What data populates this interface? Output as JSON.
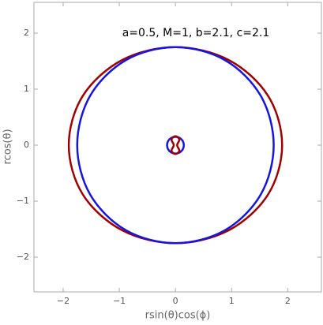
{
  "chart_data": {
    "type": "line",
    "annotation": "a=0.5, M=1, b=2.1, c=2.1",
    "xlabel": "rsin(θ)cos(ϕ)",
    "ylabel": "rcos(θ)",
    "xlim": [
      -2.52,
      2.6
    ],
    "ylim": [
      -2.62,
      2.55
    ],
    "xticks": [
      {
        "value": -2,
        "label": "−2"
      },
      {
        "value": -1,
        "label": "−1"
      },
      0,
      1,
      2
    ],
    "yticks": [
      {
        "value": -2,
        "label": "−2"
      },
      {
        "value": -1,
        "label": "−1"
      },
      0,
      1,
      2
    ],
    "series": [
      {
        "color": "#a00000",
        "x": [
          1.9,
          1.65,
          0.95,
          0,
          -0.95,
          -1.65,
          -1.9,
          -1.65,
          -0.95,
          0,
          0.95,
          1.65,
          1.9
        ],
        "values": [
          0,
          0.88,
          1.52,
          1.75,
          1.52,
          0.88,
          0,
          -0.88,
          -1.52,
          -1.75,
          -1.52,
          -0.88,
          0
        ]
      },
      {
        "color": "#1414e6",
        "x": [
          1.75,
          1.52,
          0.88,
          0,
          -0.88,
          -1.52,
          -1.75,
          -1.52,
          -0.88,
          0,
          0.88,
          1.52,
          1.75
        ],
        "values": [
          0,
          0.88,
          1.52,
          1.75,
          1.52,
          0.88,
          0,
          -0.88,
          -1.52,
          -1.75,
          -1.52,
          -0.88,
          0
        ]
      },
      {
        "color": "#1414e6",
        "x": [
          0.15,
          0.13,
          0.075,
          0,
          -0.075,
          -0.13,
          -0.15,
          -0.13,
          -0.075,
          0,
          0.075,
          0.13,
          0.15
        ],
        "values": [
          0,
          0.075,
          0.13,
          0.15,
          0.13,
          0.075,
          0,
          -0.075,
          -0.13,
          -0.15,
          -0.13,
          -0.075,
          0
        ]
      },
      {
        "color": "#a00000",
        "x": [
          0,
          0.07,
          0.03,
          0.07,
          0,
          -0.07,
          -0.03,
          -0.07,
          0
        ],
        "values": [
          0.16,
          0.1,
          0,
          -0.1,
          -0.16,
          -0.1,
          0,
          0.1,
          0.16
        ]
      }
    ]
  }
}
